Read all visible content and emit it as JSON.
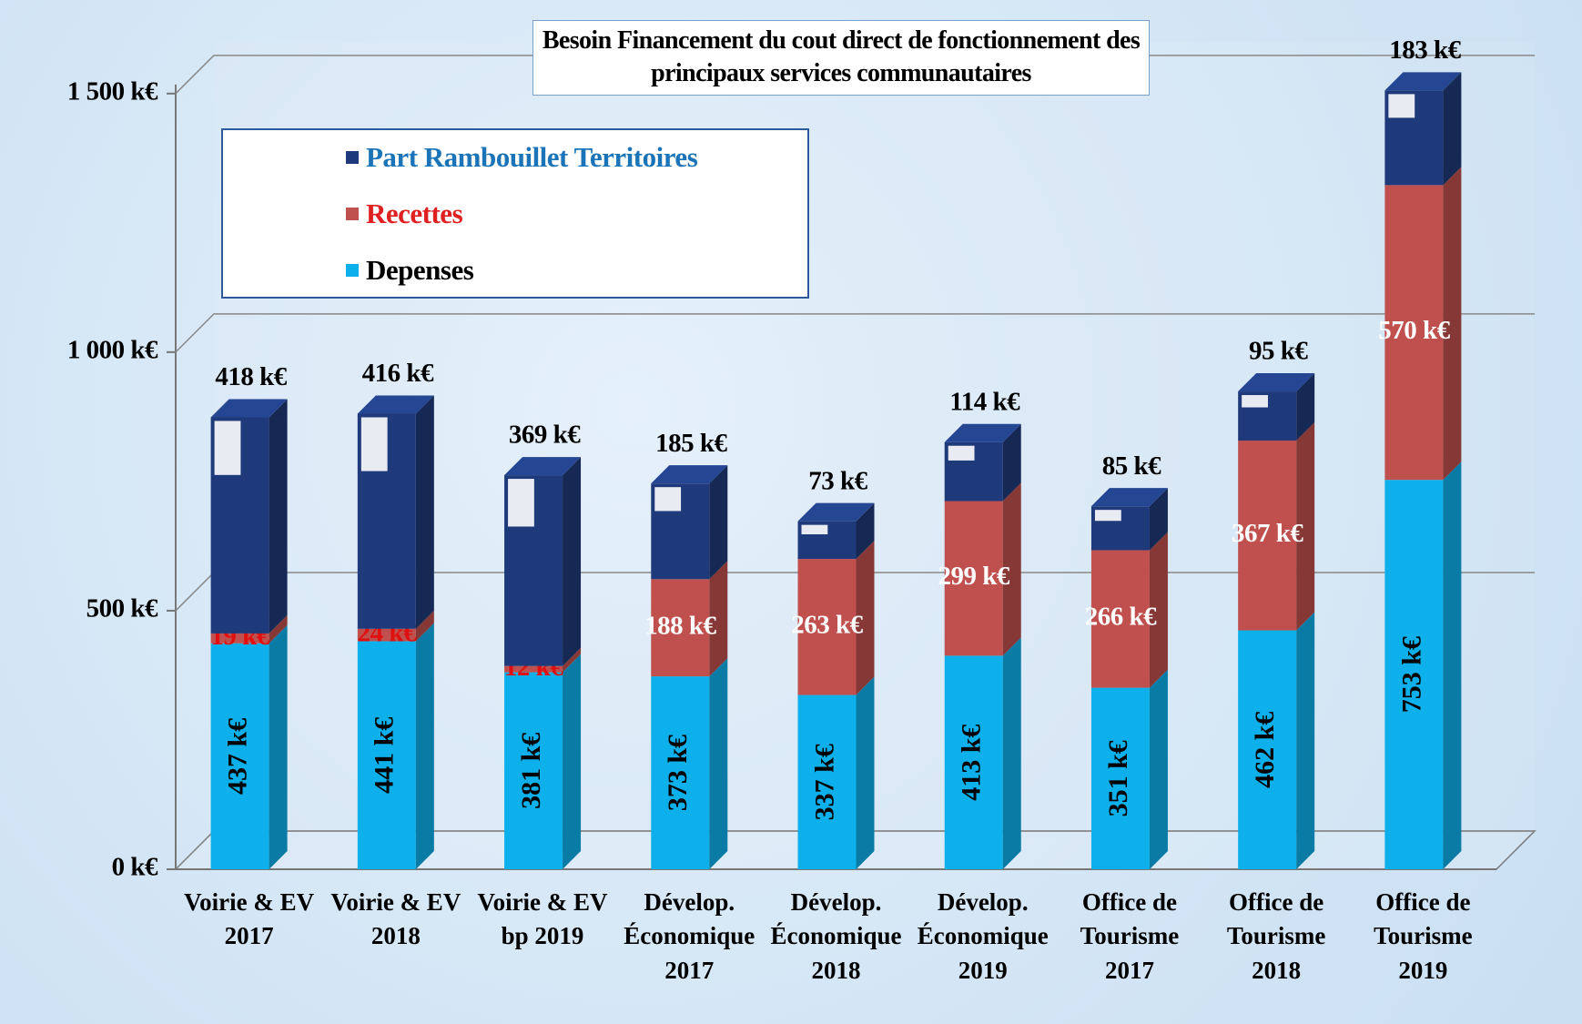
{
  "chart_data": {
    "type": "stacked-bar-3d",
    "title": "Besoin Financement du cout direct de fonctionnement des principaux services communautaires",
    "categories": [
      "Voirie & EV 2017",
      "Voirie & EV 2018",
      "Voirie & EV bp 2019",
      "Dévelop. Économique 2017",
      "Dévelop. Économique 2018",
      "Dévelop. Économique 2019",
      "Office de Tourisme 2017",
      "Office de Tourisme 2018",
      "Office de Tourisme 2019"
    ],
    "series": [
      {
        "name": "Depenses",
        "color": "#0db0ea",
        "values": [
          437,
          441,
          381,
          373,
          337,
          413,
          351,
          462,
          753
        ],
        "value_labels": [
          "437 k€",
          "441 k€",
          "381 k€",
          "373 k€",
          "337 k€",
          "413 k€",
          "351 k€",
          "462 k€",
          "753 k€"
        ]
      },
      {
        "name": "Recettes",
        "color": "#c0504d",
        "values": [
          19,
          24,
          12,
          188,
          263,
          299,
          266,
          367,
          570
        ],
        "value_labels": [
          "19 k€",
          "24 k€",
          "12 k€",
          "188 k€",
          "263 k€",
          "299 k€",
          "266 k€",
          "367 k€",
          "570 k€"
        ]
      },
      {
        "name": "Part Rambouillet Territoires",
        "color": "#1f3a7a",
        "values": [
          418,
          416,
          369,
          185,
          73,
          114,
          85,
          95,
          183
        ],
        "value_labels": [
          "418 k€",
          "416 k€",
          "369 k€",
          "185 k€",
          "73 k€",
          "114 k€",
          "85 k€",
          "95 k€",
          "183 k€"
        ]
      }
    ],
    "ylim": [
      0,
      1600
    ],
    "yticks": [
      {
        "value": 0,
        "label": "0 k€"
      },
      {
        "value": 500,
        "label": "500 k€"
      },
      {
        "value": 1000,
        "label": "1 000 k€"
      },
      {
        "value": 1500,
        "label": "1 500 k€"
      }
    ],
    "grid": true
  }
}
